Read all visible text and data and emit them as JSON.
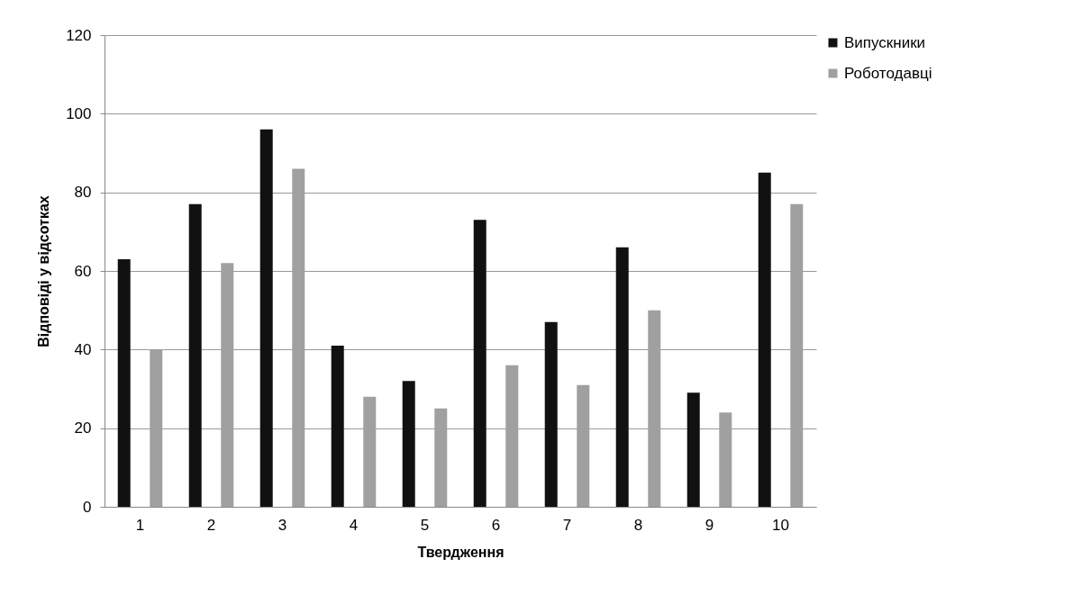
{
  "chart_data": {
    "type": "bar",
    "xlabel": "Твердження",
    "ylabel": "Відповіді у відсотках",
    "categories": [
      "1",
      "2",
      "3",
      "4",
      "5",
      "6",
      "7",
      "8",
      "9",
      "10"
    ],
    "series": [
      {
        "name": "Випускники",
        "color": "#111111",
        "values": [
          63,
          77,
          96,
          41,
          32,
          73,
          47,
          66,
          29,
          85
        ]
      },
      {
        "name": "Роботодавці",
        "color": "#a0a0a0",
        "values": [
          40,
          62,
          86,
          28,
          25,
          36,
          31,
          50,
          24,
          77
        ]
      }
    ],
    "ylim": [
      0,
      120
    ],
    "yticks": [
      0,
      20,
      40,
      60,
      80,
      100,
      120
    ],
    "grid": "y",
    "legend": "right"
  }
}
